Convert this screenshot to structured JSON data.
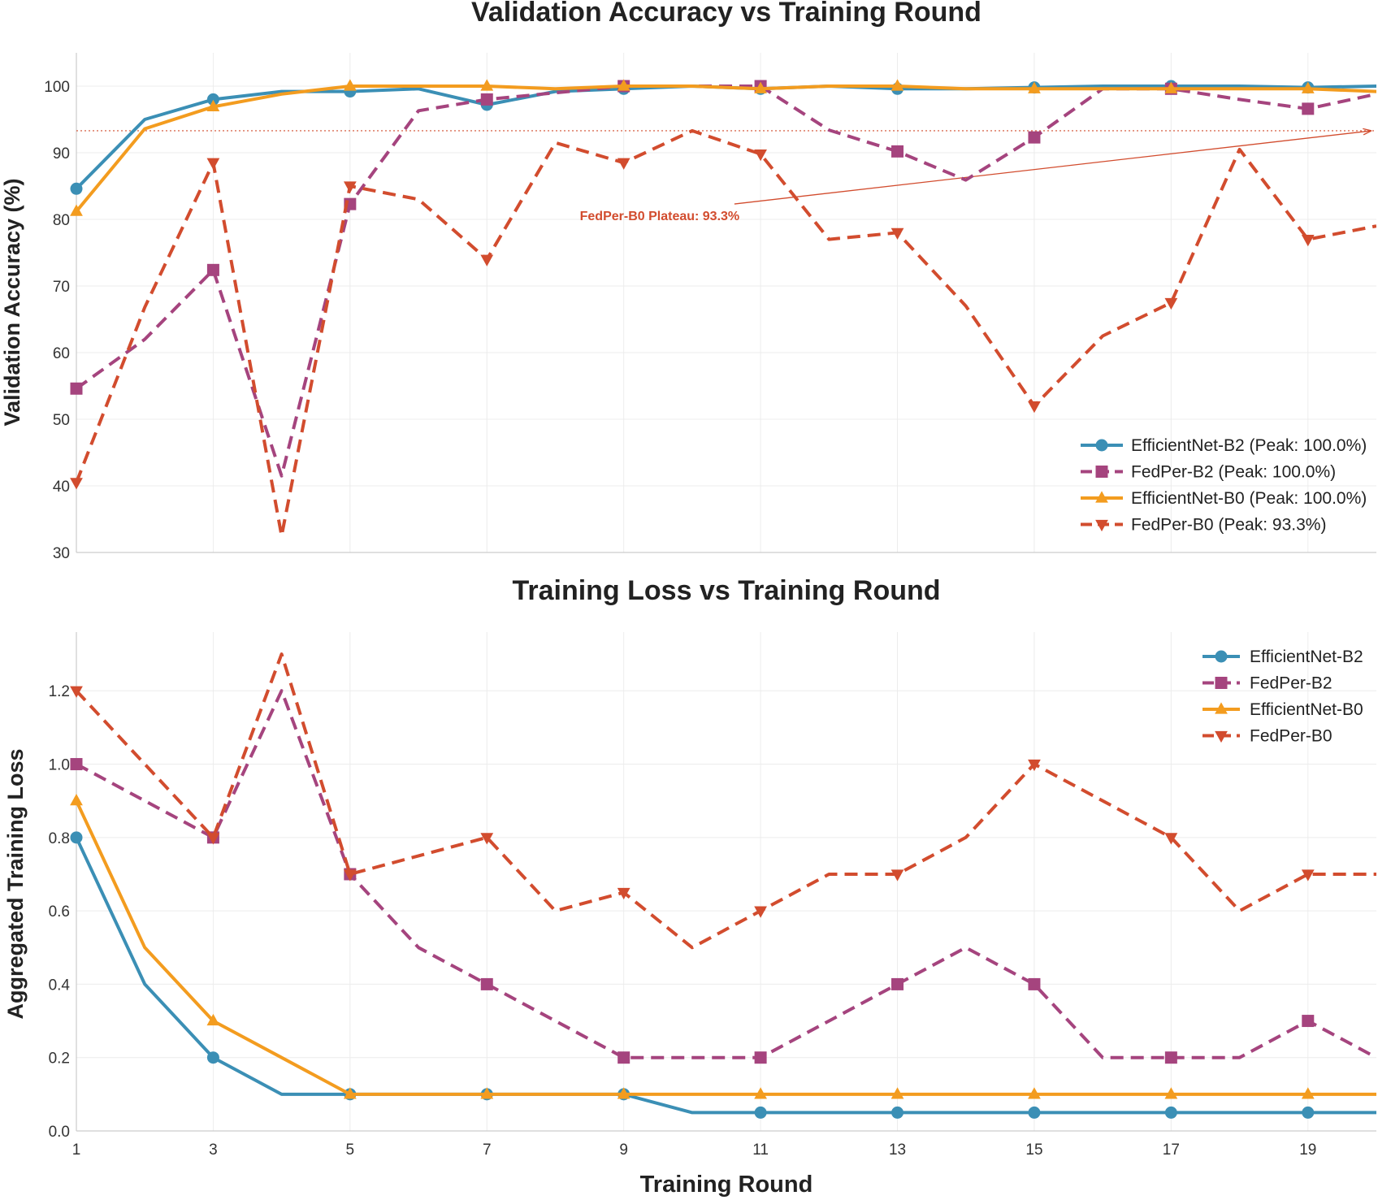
{
  "colors": {
    "efficientnet_b2": "#3b8fb5",
    "fedper_b2": "#a5447e",
    "efficientnet_b0": "#f39c1f",
    "fedper_b0": "#d24c2e"
  },
  "chart_data": [
    {
      "type": "line",
      "title": "Validation Accuracy vs Training Round",
      "xlabel": "",
      "ylabel": "Validation Accuracy (%)",
      "x": [
        1,
        2,
        3,
        4,
        5,
        6,
        7,
        8,
        9,
        10,
        11,
        12,
        13,
        14,
        15,
        16,
        17,
        18,
        19,
        20
      ],
      "xlim": [
        1,
        20
      ],
      "ylim": [
        30,
        105
      ],
      "x_ticks": [
        1,
        3,
        5,
        7,
        9,
        11,
        13,
        15,
        17,
        19
      ],
      "y_ticks": [
        30,
        40,
        50,
        60,
        70,
        80,
        90,
        100
      ],
      "grid": true,
      "series": [
        {
          "name": "EfficientNet-B2",
          "legend": "EfficientNet-B2 (Peak: 100.0%)",
          "marker": "circle",
          "dashed": false,
          "color_key": "efficientnet_b2",
          "values": [
            84.6,
            95.0,
            98.0,
            99.2,
            99.2,
            99.6,
            97.2,
            99.2,
            99.6,
            100.0,
            99.6,
            100.0,
            99.6,
            99.6,
            99.8,
            100.0,
            100.0,
            100.0,
            99.8,
            100.0
          ]
        },
        {
          "name": "FedPer-B2",
          "legend": "FedPer-B2 (Peak: 100.0%)",
          "marker": "square",
          "dashed": true,
          "color_key": "fedper_b2",
          "values": [
            54.6,
            62.0,
            72.4,
            41.5,
            82.3,
            96.3,
            98.0,
            99.0,
            100.0,
            100.0,
            100.0,
            93.4,
            90.2,
            85.9,
            92.3,
            99.6,
            99.6,
            98.0,
            96.6,
            98.8
          ]
        },
        {
          "name": "EfficientNet-B0",
          "legend": "EfficientNet-B0 (Peak: 100.0%)",
          "marker": "triangle-up",
          "dashed": false,
          "color_key": "efficientnet_b0",
          "values": [
            81.2,
            93.6,
            96.9,
            98.8,
            100.0,
            100.0,
            100.0,
            99.6,
            100.0,
            100.0,
            99.6,
            100.0,
            100.0,
            99.6,
            99.6,
            99.6,
            99.6,
            99.6,
            99.6,
            99.2
          ]
        },
        {
          "name": "FedPer-B0",
          "legend": "FedPer-B0 (Peak: 93.3%)",
          "marker": "triangle-down",
          "dashed": true,
          "color_key": "fedper_b0",
          "values": [
            40.5,
            66.8,
            88.5,
            32.5,
            85.0,
            83.0,
            74.0,
            91.5,
            88.5,
            93.3,
            89.8,
            77.0,
            78.0,
            67.0,
            52.0,
            62.5,
            67.5,
            90.5,
            77.0,
            79.0
          ]
        }
      ],
      "reference_line": {
        "y": 93.3,
        "style": "dotted",
        "color_key": "fedper_b0"
      },
      "annotation": {
        "text": "FedPer-B0 Plateau: 93.3%",
        "text_x": 10.0,
        "text_y": 80.6,
        "arrow_to_x": 20.0,
        "arrow_to_y": 93.3
      },
      "legend_position": "lower-right"
    },
    {
      "type": "line",
      "title": "Training Loss vs Training Round",
      "xlabel": "Training Round",
      "ylabel": "Aggregated Training Loss",
      "x": [
        1,
        2,
        3,
        4,
        5,
        6,
        7,
        8,
        9,
        10,
        11,
        12,
        13,
        14,
        15,
        16,
        17,
        18,
        19,
        20
      ],
      "xlim": [
        1,
        20
      ],
      "ylim": [
        0.0,
        1.36
      ],
      "x_ticks": [
        1,
        3,
        5,
        7,
        9,
        11,
        13,
        15,
        17,
        19
      ],
      "y_ticks": [
        0.0,
        0.2,
        0.4,
        0.6,
        0.8,
        1.0,
        1.2
      ],
      "y_tick_labels": [
        "0.0",
        "0.2",
        "0.4",
        "0.6",
        "0.8",
        "1.0",
        "1.2"
      ],
      "grid": true,
      "series": [
        {
          "name": "EfficientNet-B2",
          "legend": "EfficientNet-B2",
          "marker": "circle",
          "dashed": false,
          "color_key": "efficientnet_b2",
          "values": [
            0.8,
            0.4,
            0.2,
            0.1,
            0.1,
            0.1,
            0.1,
            0.1,
            0.1,
            0.05,
            0.05,
            0.05,
            0.05,
            0.05,
            0.05,
            0.05,
            0.05,
            0.05,
            0.05,
            0.05
          ]
        },
        {
          "name": "FedPer-B2",
          "legend": "FedPer-B2",
          "marker": "square",
          "dashed": true,
          "color_key": "fedper_b2",
          "values": [
            1.0,
            0.9,
            0.8,
            1.2,
            0.7,
            0.5,
            0.4,
            0.3,
            0.2,
            0.2,
            0.2,
            0.3,
            0.4,
            0.5,
            0.4,
            0.2,
            0.2,
            0.2,
            0.3,
            0.2
          ]
        },
        {
          "name": "EfficientNet-B0",
          "legend": "EfficientNet-B0",
          "marker": "triangle-up",
          "dashed": false,
          "color_key": "efficientnet_b0",
          "values": [
            0.9,
            0.5,
            0.3,
            0.2,
            0.1,
            0.1,
            0.1,
            0.1,
            0.1,
            0.1,
            0.1,
            0.1,
            0.1,
            0.1,
            0.1,
            0.1,
            0.1,
            0.1,
            0.1,
            0.1
          ]
        },
        {
          "name": "FedPer-B0",
          "legend": "FedPer-B0",
          "marker": "triangle-down",
          "dashed": true,
          "color_key": "fedper_b0",
          "values": [
            1.2,
            1.0,
            0.8,
            1.3,
            0.7,
            0.75,
            0.8,
            0.6,
            0.65,
            0.5,
            0.6,
            0.7,
            0.7,
            0.8,
            1.0,
            0.9,
            0.8,
            0.6,
            0.7,
            0.7
          ]
        }
      ],
      "legend_position": "top-right"
    }
  ]
}
